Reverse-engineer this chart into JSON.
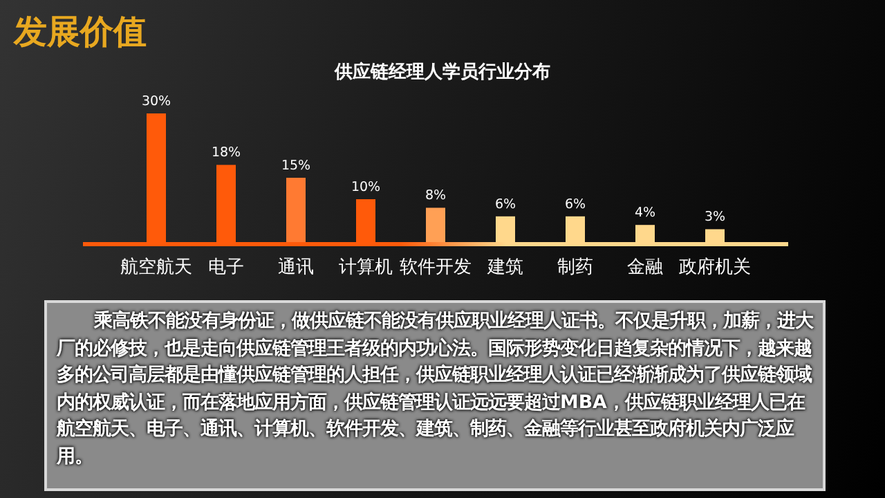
{
  "chart_data": {
    "type": "bar",
    "title": "发展价值",
    "subtitle": "供应链经理人学员行业分布",
    "categories": [
      "航空航天",
      "电子",
      "通讯",
      "计算机",
      "软件开发",
      "建筑",
      "制药",
      "金融",
      "政府机关"
    ],
    "values": [
      30,
      18,
      15,
      10,
      8,
      6,
      6,
      4,
      3
    ],
    "value_labels": [
      "30%",
      "18%",
      "15%",
      "10%",
      "8%",
      "6%",
      "6%",
      "4%",
      "3%"
    ],
    "colors": [
      "#ff5a0a",
      "#ff5a0a",
      "#ff7a32",
      "#ff5a0a",
      "#ffa055",
      "#ffd88c",
      "#ffd88c",
      "#ffd88c",
      "#ffd88c"
    ],
    "relative": false,
    "annotations": [
      "乘高铁不能没有身份证，做供应链不能没有供应职业经理人证书。不仅是升职，加薪，进大厂的必修技，也是走向供应链管理王者级的内功心法。国际形势变化日趋复杂的情况下，越来越多的公司高层都是由懂供应链管理的人担任，供应链职业经理人认证已经渐渐成为了供应链领域内的权威认证，而在落地应用方面，供应链管理认证远远要超过MBA，供应链职业经理人已在航空航天、电子、通讯、计算机、软件开发、建筑、制药、金融等行业甚至政府机关内广泛应用。"
    ]
  }
}
